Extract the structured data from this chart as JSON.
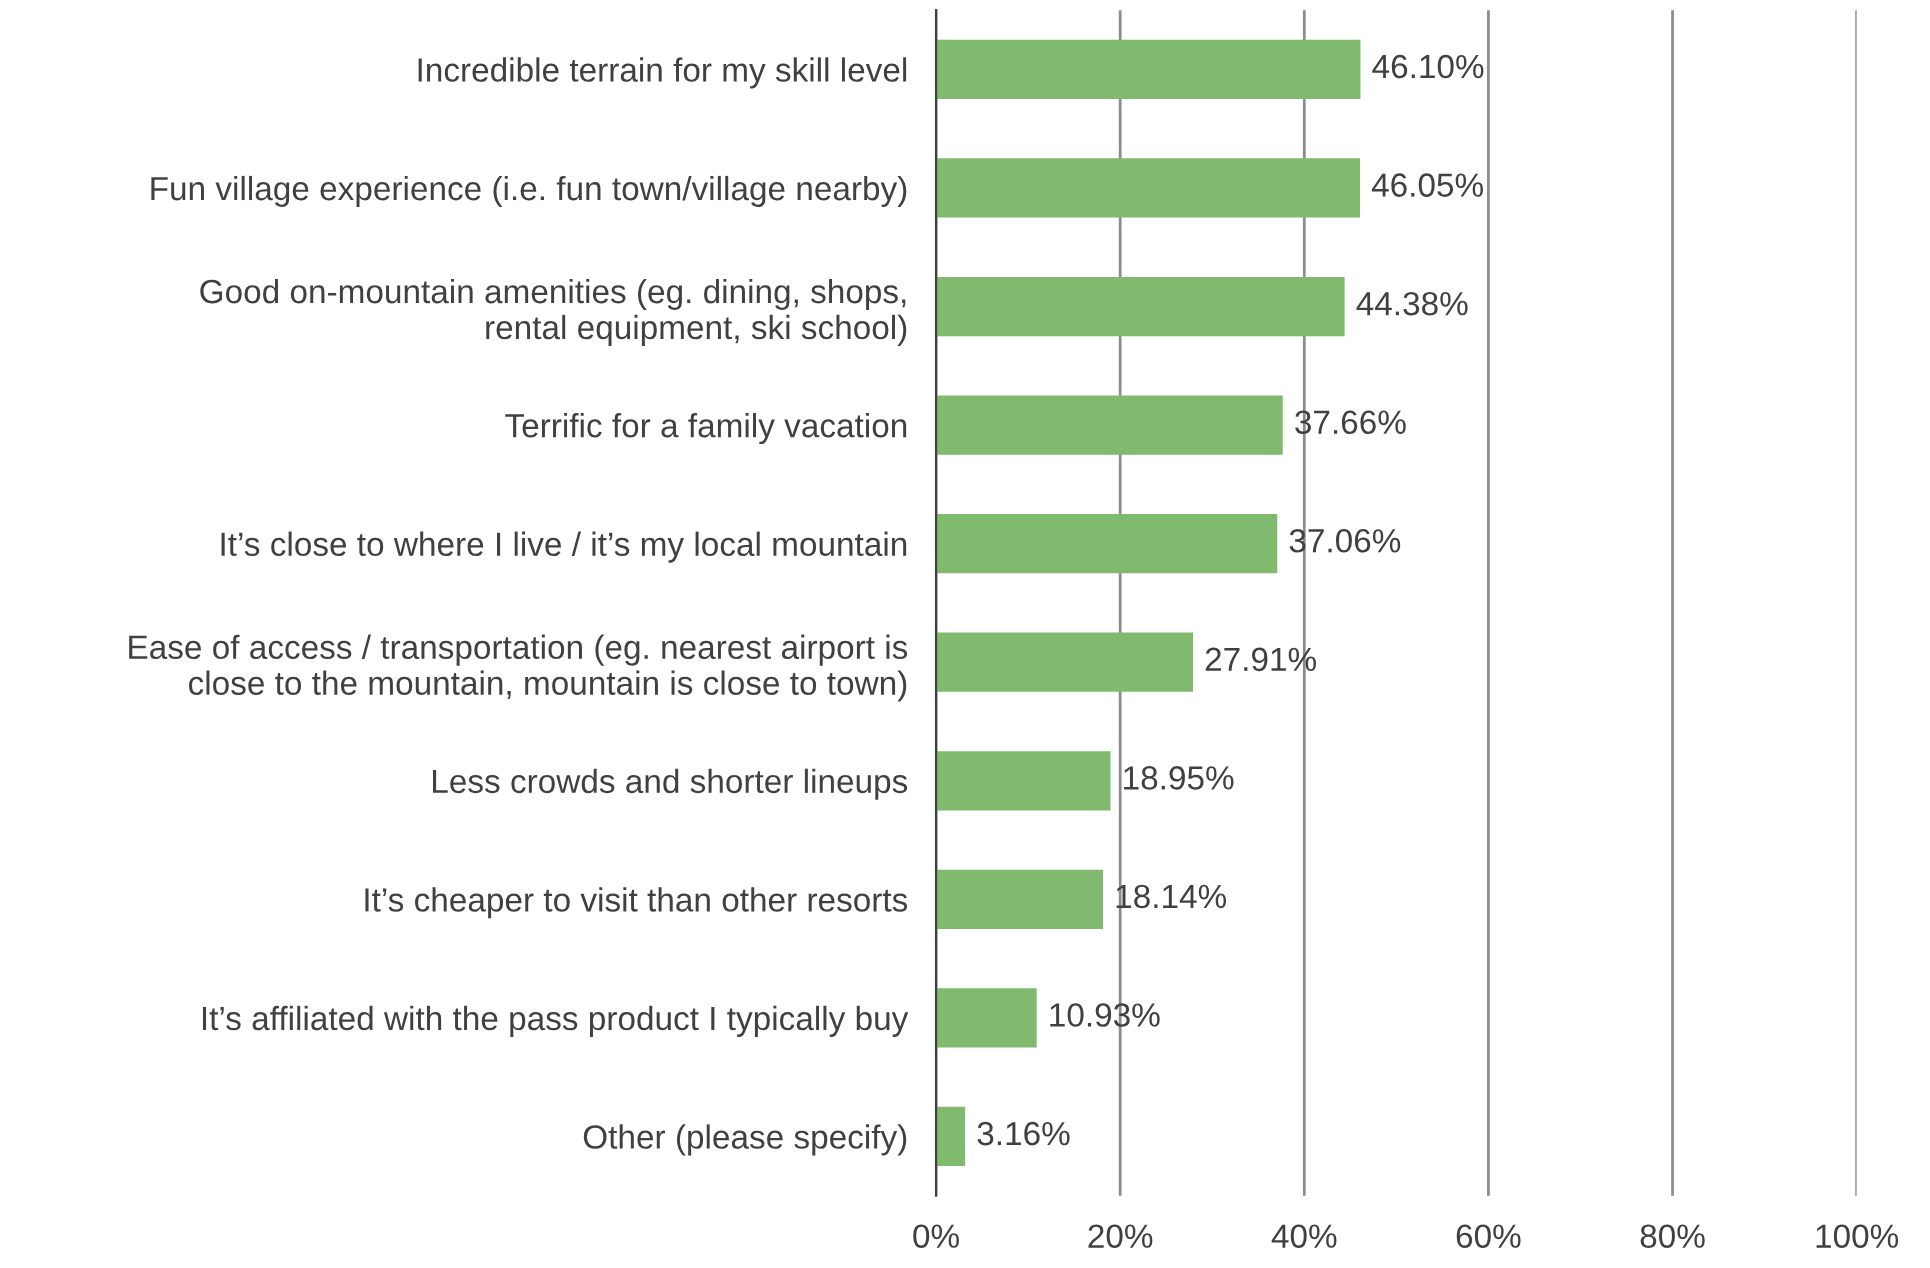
{
  "chart_data": {
    "type": "bar",
    "orientation": "horizontal",
    "categories": [
      "Incredible terrain for my skill level",
      "Fun village experience (i.e. fun town/village nearby)",
      "Good on-mountain amenities (eg. dining, shops,\nrental equipment, ski school)",
      "Terrific for a family vacation",
      "It’s close to where I live / it’s my local mountain",
      "Ease of access / transportation (eg. nearest airport is\nclose to the mountain, mountain is close to town)",
      "Less crowds and shorter lineups",
      "It’s cheaper to visit than other resorts",
      "It’s affiliated with the pass product I typically buy",
      "Other (please specify)"
    ],
    "values": [
      46.1,
      46.05,
      44.38,
      37.66,
      37.06,
      27.91,
      18.95,
      18.14,
      10.93,
      3.16
    ],
    "value_labels": [
      "46.10%",
      "46.05%",
      "44.38%",
      "37.66%",
      "37.06%",
      "27.91%",
      "18.95%",
      "18.14%",
      "10.93%",
      "3.16%"
    ],
    "color": "#7fba6f",
    "xlim": [
      0,
      100
    ],
    "xticks": [
      {
        "value": 0,
        "label": "0%"
      },
      {
        "value": 20,
        "label": "20%"
      },
      {
        "value": 40,
        "label": "40%"
      },
      {
        "value": 60,
        "label": "60%"
      },
      {
        "value": 80,
        "label": "80%"
      },
      {
        "value": 100,
        "label": "100%"
      }
    ],
    "grid": "x",
    "legend": false
  }
}
